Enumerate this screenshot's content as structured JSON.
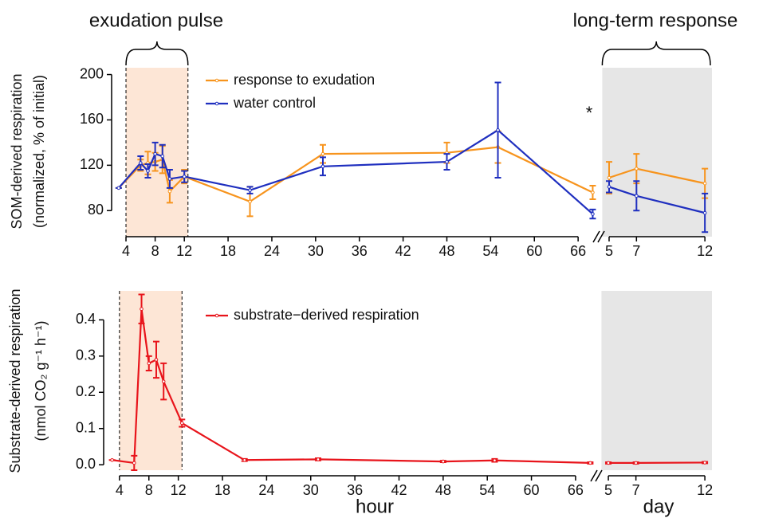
{
  "chart_data": [
    {
      "type": "line",
      "annotations": [
        "exudation pulse",
        "long-term response",
        "*"
      ],
      "ylabel": [
        "SOM-derived respiration",
        "(normalized, % of initial)"
      ],
      "x": [
        3,
        6,
        7,
        8,
        9,
        10,
        12,
        21,
        31,
        48,
        55,
        68
      ],
      "x_day": [
        5,
        7,
        12
      ],
      "xlim": [
        2.5,
        68.5
      ],
      "xticks": [
        4,
        8,
        12,
        18,
        24,
        30,
        36,
        42,
        48,
        54,
        60,
        66
      ],
      "xlim_day": [
        4.5,
        12.4
      ],
      "xticks_day": [
        5,
        7,
        12
      ],
      "ylim": [
        57,
        206
      ],
      "yticks": [
        80,
        120,
        160,
        200
      ],
      "shade": [
        4,
        12.5
      ],
      "series": [
        {
          "name": "response to exudation",
          "color": "#f7941d",
          "values": [
            100,
            120,
            122,
            123,
            125,
            97,
            110,
            88,
            130,
            131,
            136,
            96
          ],
          "errors": [
            0,
            5,
            10,
            8,
            12,
            10,
            6,
            13,
            8,
            9,
            14,
            6
          ],
          "values_day": [
            109,
            117,
            104
          ],
          "errors_day": [
            14,
            13,
            13
          ]
        },
        {
          "name": "water control",
          "color": "#1f2fbf",
          "values": [
            100,
            122,
            115,
            130,
            128,
            108,
            110,
            98,
            119,
            123,
            151,
            77
          ],
          "errors": [
            0,
            6,
            6,
            10,
            10,
            8,
            5,
            3,
            8,
            7,
            42,
            4
          ],
          "values_day": [
            101,
            93,
            78
          ],
          "errors_day": [
            5,
            13,
            17
          ]
        }
      ]
    },
    {
      "type": "line",
      "xlabel": "hour",
      "xlabel_day": "day",
      "ylabel": [
        "Substrate-derived respiration",
        "(nmol CO₂ g⁻¹ h⁻¹)"
      ],
      "x": [
        3,
        6,
        7,
        8,
        9,
        10,
        12.5,
        21,
        31,
        48,
        55,
        68
      ],
      "x_day": [
        5,
        7,
        12
      ],
      "xlim": [
        2.5,
        68.5
      ],
      "xticks": [
        4,
        8,
        12,
        18,
        24,
        30,
        36,
        42,
        48,
        54,
        60,
        66
      ],
      "xlim_day": [
        4.5,
        12.4
      ],
      "xticks_day": [
        5,
        7,
        12
      ],
      "ylim": [
        -0.015,
        0.48
      ],
      "yticks": [
        {
          "value": 0,
          "label": "0.0"
        },
        0.1,
        0.2,
        0.3,
        0.4
      ],
      "shade": [
        4,
        12.5
      ],
      "series": [
        {
          "name": "substrate−derived respiration",
          "color": "#e8141b",
          "values": [
            0.013,
            0.005,
            0.43,
            0.28,
            0.29,
            0.23,
            0.115,
            0.013,
            0.015,
            0.009,
            0.012,
            0.005
          ],
          "errors": [
            0,
            0.02,
            0.04,
            0.02,
            0.05,
            0.05,
            0.01,
            0.003,
            0.003,
            0.002,
            0.004,
            0.002
          ],
          "values_day": [
            0.005,
            0.005,
            0.006
          ],
          "errors_day": [
            0.002,
            0.002,
            0.002
          ]
        }
      ]
    }
  ]
}
